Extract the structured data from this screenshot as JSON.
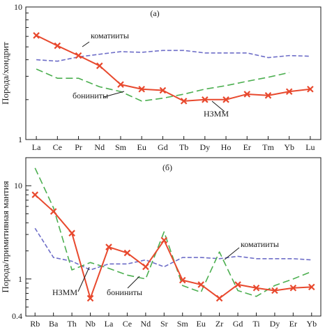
{
  "chart_data": [
    {
      "type": "line",
      "panel_label": "(а)",
      "ylabel": "Порода/хондрит",
      "yscale": "log",
      "ylim": [
        1,
        10
      ],
      "ytick_labels": [
        "1",
        "10"
      ],
      "categories": [
        "La",
        "Ce",
        "Pr",
        "Nd",
        "Sm",
        "Eu",
        "Gd",
        "Tb",
        "Dy",
        "Ho",
        "Er",
        "Tm",
        "Yb",
        "Lu"
      ],
      "series": [
        {
          "name": "НЗММ",
          "style": "solid-cross",
          "color": "#e8492e",
          "values": [
            6.1,
            5.1,
            4.3,
            3.6,
            2.6,
            2.4,
            2.35,
            1.95,
            2.0,
            2.0,
            2.2,
            2.15,
            2.3,
            2.4
          ]
        },
        {
          "name": "коматииты",
          "style": "dash-fine",
          "color": "#6e6ec8",
          "values": [
            4.0,
            3.9,
            4.2,
            4.4,
            4.6,
            4.55,
            4.7,
            4.7,
            4.5,
            4.5,
            4.5,
            4.15,
            4.3,
            4.25
          ]
        },
        {
          "name": "бониниты",
          "style": "dash-long",
          "color": "#4caf50",
          "values": [
            3.4,
            2.9,
            2.9,
            2.5,
            2.3,
            1.95,
            2.05,
            2.2,
            2.4,
            2.55,
            2.75,
            2.95,
            3.2,
            null
          ]
        }
      ]
    },
    {
      "type": "line",
      "panel_label": "(б)",
      "ylabel": "Порода/примитивная мантия",
      "yscale": "log",
      "ylim": [
        0.4,
        20
      ],
      "ytick_labels": [
        "0.4",
        "1",
        "10"
      ],
      "categories": [
        "Rb",
        "Ba",
        "Th",
        "Nb",
        "La",
        "Ce",
        "Nd",
        "Sr",
        "Sm",
        "Eu",
        "Zr",
        "Gd",
        "Ti",
        "Dy",
        "Er",
        "Yb"
      ],
      "series": [
        {
          "name": "НЗММ",
          "style": "solid-cross",
          "color": "#e8492e",
          "values": [
            8.0,
            5.3,
            3.1,
            0.62,
            2.2,
            1.9,
            1.35,
            2.6,
            0.97,
            0.87,
            0.62,
            0.87,
            0.8,
            0.75,
            0.8,
            0.82
          ]
        },
        {
          "name": "коматииты",
          "style": "dash-fine",
          "color": "#6e6ec8",
          "values": [
            3.5,
            1.7,
            1.55,
            1.25,
            1.45,
            1.45,
            1.6,
            1.35,
            1.7,
            1.7,
            1.65,
            1.75,
            1.65,
            1.65,
            1.65,
            1.6
          ]
        },
        {
          "name": "бониниты",
          "style": "dash-long",
          "color": "#4caf50",
          "values": [
            15.5,
            5.8,
            1.25,
            1.5,
            1.3,
            1.1,
            1.0,
            3.2,
            0.85,
            0.72,
            1.95,
            0.75,
            0.65,
            0.85,
            1.0,
            1.2
          ]
        }
      ]
    }
  ]
}
